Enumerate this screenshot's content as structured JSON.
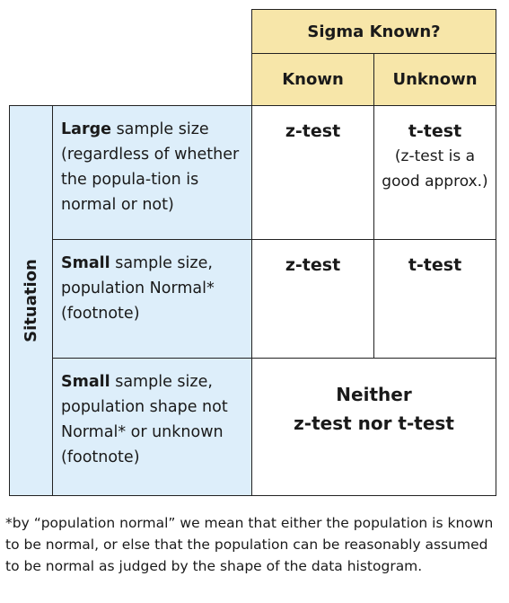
{
  "header": {
    "title": "Sigma Known?",
    "known": "Known",
    "unknown": "Unknown"
  },
  "side_label": "Situation",
  "rows": [
    {
      "bold": "Large",
      "rest": " sample size (regardless of whether the popula-tion is normal or not)",
      "known_result": "z-test",
      "unknown_result": "t-test",
      "unknown_note": "(z-test is a good approx.)"
    },
    {
      "bold": "Small",
      "rest": " sample size, population Normal* (footnote)",
      "known_result": "z-test",
      "unknown_result": "t-test"
    },
    {
      "bold": "Small",
      "rest": " sample size, population shape not Normal* or unknown (footnote)",
      "merged_line1": "Neither",
      "merged_line2": "z-test nor t-test"
    }
  ],
  "footnote": "*by “population normal” we mean that either the population is known to be normal, or else that the population can be reasonably assumed to be normal as judged by the shape of the data histogram.",
  "colors": {
    "header_bg": "#f7e6a9",
    "side_bg": "#ddeefa",
    "border": "#222222"
  }
}
